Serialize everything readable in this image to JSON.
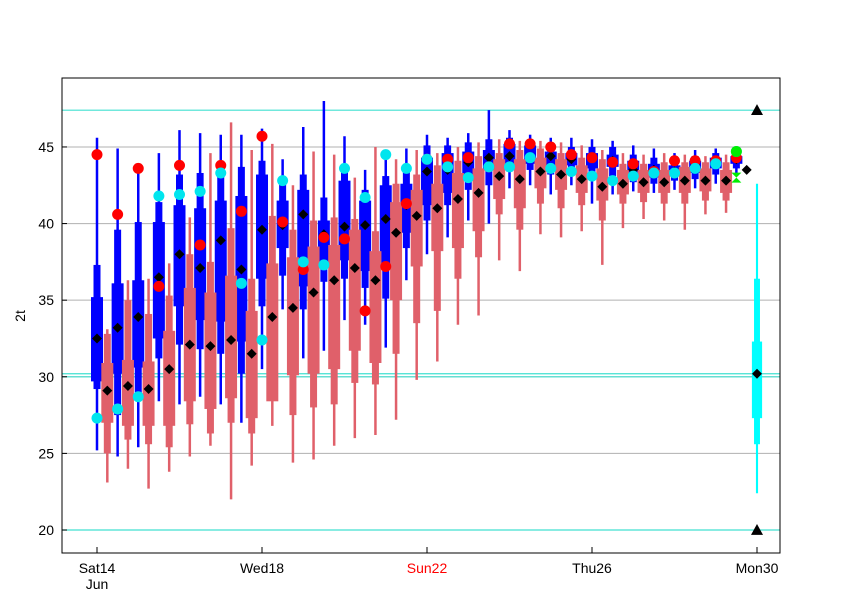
{
  "chart_data": {
    "type": "box",
    "ylabel": "2t",
    "ylim": [
      18.5,
      49.5
    ],
    "yticks": [
      20,
      25,
      30,
      35,
      40,
      45
    ],
    "xlim": [
      0,
      16
    ],
    "grid": "horizontal",
    "xticks": [
      {
        "x": 0,
        "label": "Sat14",
        "sublabel": "Jun",
        "highlight": false
      },
      {
        "x": 4,
        "label": "Wed18",
        "sublabel": "",
        "highlight": false
      },
      {
        "x": 8,
        "label": "Sun22",
        "sublabel": "",
        "highlight": true
      },
      {
        "x": 12,
        "label": "Thu26",
        "sublabel": "",
        "highlight": false
      },
      {
        "x": 16,
        "label": "Mon30",
        "sublabel": "",
        "highlight": false
      }
    ],
    "reference_lines": [
      47.4,
      30.2,
      30.0,
      20.0
    ],
    "colors": {
      "ens_a": "#0000ff",
      "ens_b": "#e0606a",
      "hres": "#ff0000",
      "control": "#00e5ee",
      "median": "#000000",
      "climate": "#00ffff",
      "extreme": "#00ee00",
      "refline": "#40e0d0"
    },
    "ens_a": [
      {
        "x": 0.0,
        "min": 25.2,
        "p10": 29.2,
        "p25": 29.7,
        "median": 32.5,
        "p75": 35.2,
        "p90": 37.3,
        "max": 45.6
      },
      {
        "x": 0.5,
        "min": 24.8,
        "p10": 27.5,
        "p25": 30.2,
        "median": 33.2,
        "p75": 36.1,
        "p90": 39.6,
        "max": 44.9
      },
      {
        "x": 1.0,
        "min": 25.4,
        "p10": 28.7,
        "p25": 30.6,
        "median": 33.9,
        "p75": 36.3,
        "p90": 40.1,
        "max": 43.5
      },
      {
        "x": 1.5,
        "min": 28.4,
        "p10": 31.2,
        "p25": 32.5,
        "median": 36.5,
        "p75": 40.1,
        "p90": 41.4,
        "max": 44.6
      },
      {
        "x": 2.0,
        "min": 28.2,
        "p10": 32.1,
        "p25": 34.6,
        "median": 38.0,
        "p75": 41.2,
        "p90": 43.2,
        "max": 46.1
      },
      {
        "x": 2.5,
        "min": 28.7,
        "p10": 31.8,
        "p25": 33.7,
        "median": 37.1,
        "p75": 41.0,
        "p90": 43.3,
        "max": 45.9
      },
      {
        "x": 3.0,
        "min": 28.2,
        "p10": 31.5,
        "p25": 33.6,
        "median": 38.9,
        "p75": 41.5,
        "p90": 43.8,
        "max": 45.8
      },
      {
        "x": 3.5,
        "min": 27.0,
        "p10": 30.2,
        "p25": 32.3,
        "median": 37.0,
        "p75": 41.8,
        "p90": 43.7,
        "max": 45.8
      },
      {
        "x": 4.0,
        "min": 30.5,
        "p10": 34.6,
        "p25": 36.4,
        "median": 39.6,
        "p75": 43.2,
        "p90": 44.1,
        "max": 46.2
      },
      {
        "x": 4.5,
        "min": 34.4,
        "p10": 36.6,
        "p25": 38.4,
        "median": 39.9,
        "p75": 41.5,
        "p90": 42.6,
        "max": 44.2
      },
      {
        "x": 5.0,
        "min": 31.2,
        "p10": 34.4,
        "p25": 35.9,
        "median": 40.6,
        "p75": 42.2,
        "p90": 43.2,
        "max": 46.3
      },
      {
        "x": 5.5,
        "min": 31.7,
        "p10": 36.2,
        "p25": 37.2,
        "median": 39.3,
        "p75": 40.2,
        "p90": 41.7,
        "max": 48.0
      },
      {
        "x": 6.0,
        "min": 33.7,
        "p10": 36.4,
        "p25": 37.6,
        "median": 39.8,
        "p75": 42.8,
        "p90": 43.5,
        "max": 45.7
      },
      {
        "x": 6.5,
        "min": 33.4,
        "p10": 35.8,
        "p25": 36.9,
        "median": 39.9,
        "p75": 41.5,
        "p90": 42.2,
        "max": 43.5
      },
      {
        "x": 7.0,
        "min": 31.9,
        "p10": 35.1,
        "p25": 37.2,
        "median": 40.3,
        "p75": 42.5,
        "p90": 43.1,
        "max": 44.6
      },
      {
        "x": 7.5,
        "min": 36.3,
        "p10": 38.4,
        "p25": 39.4,
        "median": 41.2,
        "p75": 42.6,
        "p90": 43.6,
        "max": 44.9
      },
      {
        "x": 8.0,
        "min": 38.0,
        "p10": 40.2,
        "p25": 41.2,
        "median": 43.4,
        "p75": 44.3,
        "p90": 45.1,
        "max": 45.8
      },
      {
        "x": 8.5,
        "min": 39.1,
        "p10": 41.2,
        "p25": 42.0,
        "median": 43.5,
        "p75": 44.6,
        "p90": 45.1,
        "max": 45.6
      },
      {
        "x": 9.0,
        "min": 40.2,
        "p10": 42.2,
        "p25": 43.1,
        "median": 44.0,
        "p75": 44.7,
        "p90": 45.3,
        "max": 45.9
      },
      {
        "x": 9.5,
        "min": 40.0,
        "p10": 42.5,
        "p25": 43.5,
        "median": 44.3,
        "p75": 44.8,
        "p90": 45.5,
        "max": 47.4
      },
      {
        "x": 10.0,
        "min": 42.3,
        "p10": 43.4,
        "p25": 43.9,
        "median": 44.4,
        "p75": 45.2,
        "p90": 45.6,
        "max": 46.1
      },
      {
        "x": 10.5,
        "min": 42.5,
        "p10": 43.5,
        "p25": 43.9,
        "median": 44.3,
        "p75": 45.1,
        "p90": 45.4,
        "max": 45.8
      },
      {
        "x": 11.0,
        "min": 41.9,
        "p10": 43.2,
        "p25": 43.8,
        "median": 44.4,
        "p75": 44.7,
        "p90": 45.2,
        "max": 45.6
      },
      {
        "x": 11.5,
        "min": 42.5,
        "p10": 43.4,
        "p25": 43.8,
        "median": 44.2,
        "p75": 44.6,
        "p90": 45.0,
        "max": 45.6
      },
      {
        "x": 12.0,
        "min": 41.3,
        "p10": 43.0,
        "p25": 43.6,
        "median": 44.3,
        "p75": 44.6,
        "p90": 45.0,
        "max": 45.5
      },
      {
        "x": 12.5,
        "min": 41.9,
        "p10": 43.1,
        "p25": 43.7,
        "median": 44.1,
        "p75": 44.5,
        "p90": 45.0,
        "max": 45.4
      },
      {
        "x": 13.0,
        "min": 42.1,
        "p10": 42.7,
        "p25": 43.2,
        "median": 43.5,
        "p75": 44.1,
        "p90": 44.5,
        "max": 45.1
      },
      {
        "x": 13.5,
        "min": 42.0,
        "p10": 42.6,
        "p25": 43.0,
        "median": 43.5,
        "p75": 43.9,
        "p90": 44.3,
        "max": 44.9
      },
      {
        "x": 14.0,
        "min": 42.2,
        "p10": 42.8,
        "p25": 43.1,
        "median": 43.4,
        "p75": 43.8,
        "p90": 44.1,
        "max": 44.6
      },
      {
        "x": 14.5,
        "min": 42.3,
        "p10": 42.9,
        "p25": 43.3,
        "median": 43.8,
        "p75": 44.1,
        "p90": 44.4,
        "max": 44.8
      },
      {
        "x": 15.0,
        "min": 42.6,
        "p10": 43.2,
        "p25": 43.6,
        "median": 44.1,
        "p75": 44.3,
        "p90": 44.6,
        "max": 44.9
      },
      {
        "x": 15.5,
        "min": 43.2,
        "p10": 43.6,
        "p25": 43.9,
        "median": 44.2,
        "p75": 44.4,
        "p90": 44.6,
        "max": 44.8
      }
    ],
    "ens_b": [
      {
        "x": 0.25,
        "min": 23.1,
        "p10": 25.0,
        "p25": 27.0,
        "median": 29.1,
        "p75": 30.9,
        "p90": 32.8,
        "max": 33.1
      },
      {
        "x": 0.75,
        "min": 24.0,
        "p10": 25.9,
        "p25": 26.8,
        "median": 29.4,
        "p75": 31.1,
        "p90": 35.0,
        "max": 36.3
      },
      {
        "x": 1.25,
        "min": 22.7,
        "p10": 25.6,
        "p25": 26.8,
        "median": 29.2,
        "p75": 31.0,
        "p90": 34.1,
        "max": 36.4
      },
      {
        "x": 1.75,
        "min": 23.8,
        "p10": 25.4,
        "p25": 26.8,
        "median": 30.5,
        "p75": 33.0,
        "p90": 35.3,
        "max": 37.4
      },
      {
        "x": 2.25,
        "min": 24.8,
        "p10": 26.9,
        "p25": 28.4,
        "median": 32.1,
        "p75": 35.8,
        "p90": 38.0,
        "max": 40.4
      },
      {
        "x": 2.75,
        "min": 25.5,
        "p10": 26.3,
        "p25": 27.9,
        "median": 32.0,
        "p75": 35.5,
        "p90": 37.5,
        "max": 44.6
      },
      {
        "x": 3.25,
        "min": 22.0,
        "p10": 27.0,
        "p25": 28.6,
        "median": 32.4,
        "p75": 36.6,
        "p90": 39.7,
        "max": 46.6
      },
      {
        "x": 3.75,
        "min": 24.2,
        "p10": 26.3,
        "p25": 27.3,
        "median": 31.5,
        "p75": 34.3,
        "p90": 36.4,
        "max": 44.8
      },
      {
        "x": 4.25,
        "min": 26.8,
        "p10": 29.9,
        "p25": 28.4,
        "median": 33.9,
        "p75": 37.4,
        "p90": 40.5,
        "max": 45.2
      },
      {
        "x": 4.75,
        "min": 24.4,
        "p10": 27.5,
        "p25": 30.1,
        "median": 34.5,
        "p75": 37.8,
        "p90": 39.6,
        "max": 42.5
      },
      {
        "x": 5.25,
        "min": 24.6,
        "p10": 28.0,
        "p25": 30.2,
        "median": 35.5,
        "p75": 38.5,
        "p90": 40.2,
        "max": 44.7
      },
      {
        "x": 5.75,
        "min": 25.5,
        "p10": 28.2,
        "p25": 30.5,
        "median": 36.3,
        "p75": 38.6,
        "p90": 40.4,
        "max": 44.5
      },
      {
        "x": 6.25,
        "min": 26.0,
        "p10": 29.6,
        "p25": 31.7,
        "median": 37.1,
        "p75": 39.6,
        "p90": 40.3,
        "max": 43.0
      },
      {
        "x": 6.75,
        "min": 26.2,
        "p10": 29.5,
        "p25": 30.9,
        "median": 36.3,
        "p75": 38.2,
        "p90": 39.5,
        "max": 45.0
      },
      {
        "x": 7.25,
        "min": 27.2,
        "p10": 31.5,
        "p25": 35.0,
        "median": 39.4,
        "p75": 41.4,
        "p90": 42.6,
        "max": 44.2
      },
      {
        "x": 7.75,
        "min": 29.8,
        "p10": 33.5,
        "p25": 37.2,
        "median": 40.5,
        "p75": 42.2,
        "p90": 43.2,
        "max": 44.8
      },
      {
        "x": 8.25,
        "min": 31.0,
        "p10": 34.3,
        "p25": 38.2,
        "median": 41.0,
        "p75": 42.6,
        "p90": 43.8,
        "max": 44.6
      },
      {
        "x": 8.75,
        "min": 33.4,
        "p10": 36.4,
        "p25": 38.4,
        "median": 41.6,
        "p75": 43.3,
        "p90": 44.1,
        "max": 45.0
      },
      {
        "x": 9.25,
        "min": 34.0,
        "p10": 37.8,
        "p25": 39.5,
        "median": 42.0,
        "p75": 43.6,
        "p90": 44.4,
        "max": 45.3
      },
      {
        "x": 9.75,
        "min": 37.6,
        "p10": 40.6,
        "p25": 41.6,
        "median": 43.1,
        "p75": 44.2,
        "p90": 44.6,
        "max": 45.5
      },
      {
        "x": 10.25,
        "min": 36.9,
        "p10": 39.6,
        "p25": 41.0,
        "median": 42.9,
        "p75": 44.2,
        "p90": 44.8,
        "max": 45.4
      },
      {
        "x": 10.75,
        "min": 39.3,
        "p10": 41.3,
        "p25": 42.3,
        "median": 43.4,
        "p75": 44.3,
        "p90": 44.9,
        "max": 45.4
      },
      {
        "x": 11.25,
        "min": 39.1,
        "p10": 41.0,
        "p25": 42.2,
        "median": 43.2,
        "p75": 44.2,
        "p90": 44.6,
        "max": 45.3
      },
      {
        "x": 11.75,
        "min": 39.5,
        "p10": 41.2,
        "p25": 42.0,
        "median": 42.9,
        "p75": 43.8,
        "p90": 44.3,
        "max": 45.1
      },
      {
        "x": 12.25,
        "min": 37.3,
        "p10": 40.2,
        "p25": 41.5,
        "median": 42.4,
        "p75": 43.6,
        "p90": 44.2,
        "max": 44.8
      },
      {
        "x": 12.75,
        "min": 39.7,
        "p10": 41.3,
        "p25": 41.9,
        "median": 42.6,
        "p75": 43.5,
        "p90": 43.9,
        "max": 44.6
      },
      {
        "x": 13.25,
        "min": 40.3,
        "p10": 41.4,
        "p25": 42.0,
        "median": 42.7,
        "p75": 43.5,
        "p90": 43.9,
        "max": 44.5
      },
      {
        "x": 13.75,
        "min": 40.2,
        "p10": 41.3,
        "p25": 42.0,
        "median": 42.7,
        "p75": 43.5,
        "p90": 44.0,
        "max": 44.6
      },
      {
        "x": 14.25,
        "min": 39.6,
        "p10": 41.3,
        "p25": 42.0,
        "median": 42.8,
        "p75": 43.7,
        "p90": 44.0,
        "max": 44.5
      },
      {
        "x": 14.75,
        "min": 40.6,
        "p10": 41.5,
        "p25": 42.1,
        "median": 42.8,
        "p75": 43.6,
        "p90": 44.0,
        "max": 44.4
      },
      {
        "x": 15.25,
        "min": 40.7,
        "p10": 41.5,
        "p25": 42.0,
        "median": 42.8,
        "p75": 43.5,
        "p90": 44.0,
        "max": 44.5
      }
    ],
    "hres": [
      [
        0.0,
        44.5
      ],
      [
        0.5,
        40.6
      ],
      [
        1.0,
        43.6
      ],
      [
        1.5,
        35.9
      ],
      [
        2.0,
        43.8
      ],
      [
        2.5,
        38.6
      ],
      [
        3.0,
        43.8
      ],
      [
        3.5,
        40.8
      ],
      [
        4.0,
        45.7
      ],
      [
        4.5,
        40.1
      ],
      [
        5.0,
        37.0
      ],
      [
        5.5,
        39.1
      ],
      [
        6.0,
        39.0
      ],
      [
        6.5,
        34.3
      ],
      [
        7.0,
        37.2
      ],
      [
        7.5,
        41.3
      ],
      [
        8.0,
        44.2
      ],
      [
        8.5,
        44.2
      ],
      [
        9.0,
        44.3
      ],
      [
        9.5,
        43.7
      ],
      [
        10.0,
        45.2
      ],
      [
        10.5,
        45.2
      ],
      [
        11.0,
        45.0
      ],
      [
        11.5,
        44.5
      ],
      [
        12.0,
        44.3
      ],
      [
        12.5,
        44.0
      ],
      [
        13.0,
        43.9
      ],
      [
        13.5,
        43.4
      ],
      [
        14.0,
        44.1
      ],
      [
        14.5,
        44.1
      ],
      [
        15.0,
        44.1
      ],
      [
        15.5,
        44.3
      ]
    ],
    "control": [
      [
        0.0,
        27.3
      ],
      [
        0.5,
        27.9
      ],
      [
        1.0,
        28.7
      ],
      [
        1.5,
        41.8
      ],
      [
        2.0,
        41.9
      ],
      [
        2.5,
        42.1
      ],
      [
        3.0,
        43.3
      ],
      [
        3.5,
        36.1
      ],
      [
        4.0,
        32.4
      ],
      [
        4.5,
        42.8
      ],
      [
        5.0,
        37.5
      ],
      [
        5.5,
        37.3
      ],
      [
        6.0,
        43.6
      ],
      [
        6.5,
        41.7
      ],
      [
        7.0,
        44.5
      ],
      [
        7.5,
        43.6
      ],
      [
        8.0,
        44.2
      ],
      [
        8.5,
        43.7
      ],
      [
        9.0,
        43.0
      ],
      [
        9.5,
        43.7
      ],
      [
        10.0,
        43.7
      ],
      [
        10.5,
        44.3
      ],
      [
        11.0,
        43.6
      ],
      [
        11.5,
        43.4
      ],
      [
        12.0,
        43.1
      ],
      [
        12.5,
        42.8
      ],
      [
        13.0,
        43.1
      ],
      [
        13.5,
        43.3
      ],
      [
        14.0,
        43.3
      ],
      [
        14.5,
        43.6
      ],
      [
        15.0,
        43.9
      ],
      [
        15.5,
        44.7
      ]
    ],
    "median_points_extra": [
      [
        15.75,
        43.5
      ]
    ],
    "climate_box": {
      "x": 16.0,
      "min": 22.4,
      "p10": 25.6,
      "p25": 27.3,
      "median": 30.2,
      "p75": 32.3,
      "p90": 36.4,
      "max": 42.6
    },
    "climate_triangles": [
      [
        16.0,
        47.4
      ],
      [
        16.0,
        20.0
      ]
    ],
    "extreme_markers": [
      [
        15.5,
        44.7
      ],
      [
        15.5,
        43.0
      ]
    ]
  }
}
